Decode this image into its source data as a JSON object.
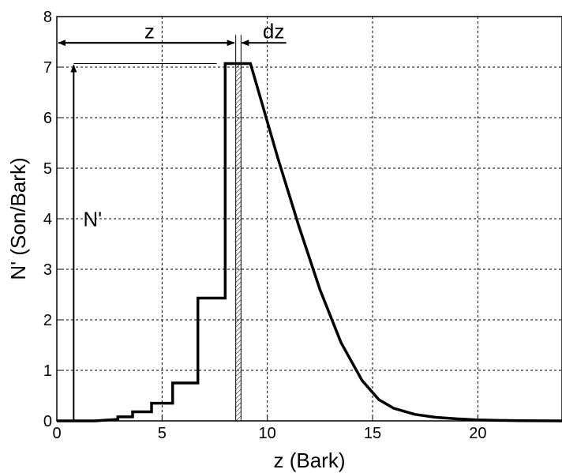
{
  "chart_data": {
    "type": "line",
    "xlabel": "z (Bark)",
    "ylabel": "N' (Son/Bark)",
    "xlim": [
      0,
      24
    ],
    "ylim": [
      0,
      8
    ],
    "xticks": [
      0,
      5,
      10,
      15,
      20
    ],
    "yticks": [
      0,
      1,
      2,
      3,
      4,
      5,
      6,
      7,
      8
    ],
    "grid": true,
    "series": [
      {
        "points": [
          [
            0,
            0
          ],
          [
            1.8,
            0
          ],
          [
            2.9,
            0.03
          ],
          [
            2.9,
            0.08
          ],
          [
            3.6,
            0.08
          ],
          [
            3.6,
            0.18
          ],
          [
            4.5,
            0.18
          ],
          [
            4.5,
            0.35
          ],
          [
            5.5,
            0.35
          ],
          [
            5.5,
            0.75
          ],
          [
            6.7,
            0.75
          ],
          [
            6.7,
            2.43
          ],
          [
            8.0,
            2.43
          ],
          [
            8.0,
            7.07
          ],
          [
            9.2,
            7.07
          ],
          [
            9.7,
            6.35
          ],
          [
            10.5,
            5.2
          ],
          [
            11.5,
            3.85
          ],
          [
            12.5,
            2.6
          ],
          [
            13.5,
            1.55
          ],
          [
            14.5,
            0.8
          ],
          [
            15.3,
            0.42
          ],
          [
            16,
            0.25
          ],
          [
            17,
            0.13
          ],
          [
            18,
            0.07
          ],
          [
            19,
            0.04
          ],
          [
            20,
            0.02
          ],
          [
            21,
            0.01
          ],
          [
            22,
            0.005
          ],
          [
            24,
            0
          ]
        ]
      }
    ],
    "annotations": {
      "z_label": "z",
      "dz_label": "dz",
      "nprime_label": "N'",
      "marker_x": 0.8,
      "strip_x": [
        8.5,
        8.75
      ],
      "z_arrow_y": 7.48,
      "peak_y": 7.07
    }
  }
}
